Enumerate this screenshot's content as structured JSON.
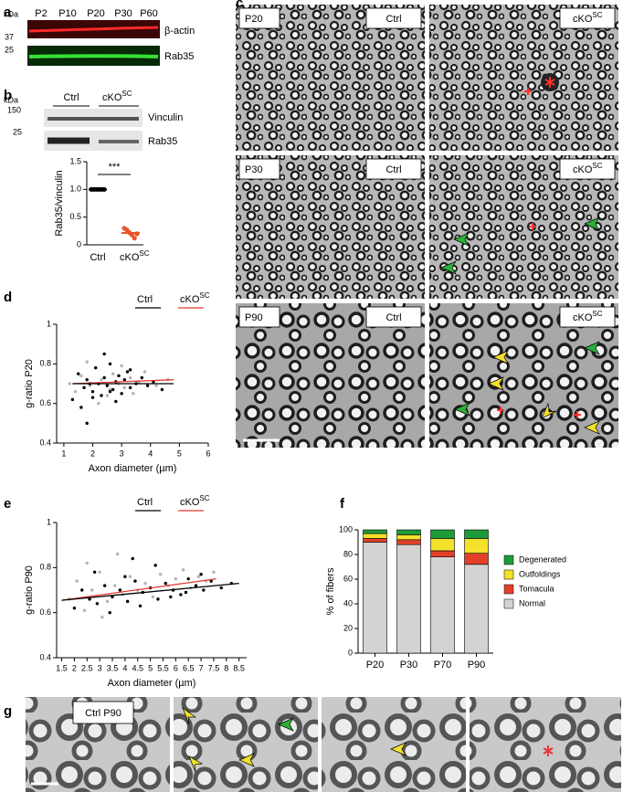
{
  "panel_letters": [
    "a",
    "b",
    "c",
    "d",
    "e",
    "f",
    "g"
  ],
  "genotype": {
    "ctrl": "Ctrl",
    "ko": "cKO",
    "ko_sup": "SC"
  },
  "blot_a": {
    "unit": "kDa",
    "markers": [
      "37",
      "25"
    ],
    "lanes": [
      "P2",
      "P10",
      "P20",
      "P30",
      "P60"
    ],
    "proteins": [
      "β-actin",
      "Rab35"
    ]
  },
  "blot_b": {
    "unit": "kDa",
    "markers": [
      "150",
      "25"
    ],
    "proteins": [
      "Vinculin",
      "Rab35"
    ]
  },
  "micrographs_c": {
    "rows": [
      "P20",
      "P30",
      "P90"
    ]
  },
  "micrographs_g": {
    "label": "Ctrl P90"
  },
  "chart_data": [
    {
      "type": "dot",
      "ylabel": "Rab35/vinculin",
      "categories": [
        "Ctrl",
        "cKO"
      ],
      "category_sup": [
        null,
        "SC"
      ],
      "values": [
        [
          1,
          1,
          1,
          1,
          1,
          1
        ],
        [
          0.3,
          0.27,
          0.22,
          0.18,
          0.12,
          0.2
        ]
      ],
      "means": [
        1,
        0.215
      ],
      "colors": [
        "#000000",
        "#e8542b"
      ],
      "annotation": "***",
      "ylim": [
        0,
        1.5
      ],
      "yticks": [
        0,
        0.5,
        {
          "value": 1,
          "label": "1.0"
        },
        1.5
      ]
    },
    {
      "type": "scatter",
      "xlabel": "Axon diameter (µm)",
      "ylabel": "g-ratio P20",
      "xlim": [
        0.75,
        6
      ],
      "xticks": [
        1,
        2,
        3,
        4,
        5,
        6
      ],
      "ylim": [
        0.4,
        1
      ],
      "yticks": [
        0.4,
        0.6,
        0.8,
        1
      ],
      "series": [
        {
          "name": "cKO",
          "name_sup": "SC",
          "color": "#b3b3b3",
          "fit_color": "#e53935",
          "x": [
            1.2,
            1.4,
            1.6,
            1.9,
            2.1,
            2.3,
            2.5,
            2.7,
            2.9,
            3.1,
            3.3,
            3.6,
            3.8,
            4.2,
            4.6,
            1.8,
            2.2,
            2.6,
            3.0,
            3.4
          ],
          "values": [
            0.7,
            0.66,
            0.74,
            0.69,
            0.78,
            0.72,
            0.64,
            0.75,
            0.7,
            0.68,
            0.73,
            0.71,
            0.76,
            0.69,
            0.72,
            0.81,
            0.6,
            0.67,
            0.79,
            0.65
          ],
          "fit": {
            "x": [
              1.3,
              4.8
            ],
            "y": [
              0.7,
              0.72
            ]
          }
        },
        {
          "name": "Ctrl",
          "color": "#000000",
          "fit_color": "#000000",
          "x": [
            1.3,
            1.5,
            1.7,
            1.8,
            2.0,
            2.1,
            2.2,
            2.3,
            2.4,
            2.5,
            2.6,
            2.7,
            2.8,
            2.9,
            3.0,
            3.1,
            3.2,
            3.3,
            3.5,
            3.7,
            3.9,
            4.1,
            4.4,
            1.6,
            2.0,
            2.4,
            2.8,
            3.3,
            1.9,
            2.6,
            1.8
          ],
          "values": [
            0.62,
            0.75,
            0.68,
            0.72,
            0.66,
            0.78,
            0.7,
            0.64,
            0.73,
            0.69,
            0.8,
            0.67,
            0.71,
            0.74,
            0.65,
            0.72,
            0.76,
            0.68,
            0.7,
            0.73,
            0.69,
            0.71,
            0.67,
            0.58,
            0.63,
            0.85,
            0.61,
            0.77,
            0.7,
            0.66,
            0.5
          ],
          "fit": {
            "x": [
              1.3,
              4.8
            ],
            "y": [
              0.7,
              0.7
            ]
          }
        }
      ]
    },
    {
      "type": "scatter",
      "xlabel": "Axon diameter (µm)",
      "ylabel": "g-ratio P90",
      "xlim": [
        1.3,
        8.8
      ],
      "xticks": [
        1.5,
        2,
        2.5,
        3,
        3.5,
        4,
        4.5,
        5,
        5.5,
        6,
        6.5,
        7,
        7.5,
        8,
        8.5
      ],
      "ylim": [
        0.4,
        1
      ],
      "yticks": [
        0.4,
        0.6,
        0.8,
        1
      ],
      "series": [
        {
          "name": "cKO",
          "name_sup": "SC",
          "color": "#b3b3b3",
          "fit_color": "#e53935",
          "x": [
            1.8,
            2.1,
            2.4,
            2.7,
            3.0,
            3.3,
            3.6,
            3.9,
            4.2,
            4.5,
            4.8,
            5.1,
            5.4,
            5.7,
            6.0,
            6.3,
            6.6,
            6.9,
            7.2,
            7.5,
            2.5,
            3.1,
            3.7
          ],
          "values": [
            0.66,
            0.74,
            0.61,
            0.7,
            0.78,
            0.65,
            0.72,
            0.68,
            0.76,
            0.7,
            0.73,
            0.67,
            0.77,
            0.72,
            0.75,
            0.79,
            0.71,
            0.76,
            0.74,
            0.78,
            0.82,
            0.58,
            0.86
          ],
          "fit": {
            "x": [
              1.5,
              7.6
            ],
            "y": [
              0.655,
              0.75
            ]
          }
        },
        {
          "name": "Ctrl",
          "color": "#000000",
          "fit_color": "#000000",
          "x": [
            2.0,
            2.3,
            2.6,
            2.9,
            3.2,
            3.5,
            3.8,
            4.1,
            4.4,
            4.7,
            5.0,
            5.3,
            5.6,
            5.9,
            6.2,
            6.5,
            6.8,
            7.1,
            7.4,
            7.8,
            8.2,
            2.8,
            3.4,
            4.0,
            4.6,
            5.2,
            5.8,
            6.4,
            7.0,
            4.3
          ],
          "values": [
            0.62,
            0.7,
            0.66,
            0.64,
            0.72,
            0.67,
            0.7,
            0.65,
            0.74,
            0.69,
            0.71,
            0.66,
            0.73,
            0.7,
            0.68,
            0.75,
            0.72,
            0.7,
            0.74,
            0.71,
            0.73,
            0.78,
            0.6,
            0.76,
            0.63,
            0.81,
            0.67,
            0.69,
            0.77,
            0.84
          ],
          "fit": {
            "x": [
              1.5,
              8.5
            ],
            "y": [
              0.655,
              0.73
            ]
          }
        }
      ]
    },
    {
      "type": "bar",
      "stacked": true,
      "ylabel": "% of fibers",
      "categories": [
        "P20",
        "P30",
        "P70",
        "P90"
      ],
      "ylim": [
        0,
        100
      ],
      "yticks": [
        0,
        20,
        40,
        60,
        80,
        100
      ],
      "series": [
        {
          "name": "Normal",
          "color": "#d3d3d3",
          "values": [
            90,
            88,
            78,
            72
          ]
        },
        {
          "name": "Tomacula",
          "color": "#e2402a",
          "values": [
            3,
            4,
            5,
            9
          ]
        },
        {
          "name": "Outfoldings",
          "color": "#f3e12b",
          "values": [
            4,
            4,
            10,
            12
          ]
        },
        {
          "name": "Degenerated",
          "color": "#1e9a3a",
          "values": [
            3,
            4,
            7,
            7
          ]
        }
      ]
    }
  ]
}
